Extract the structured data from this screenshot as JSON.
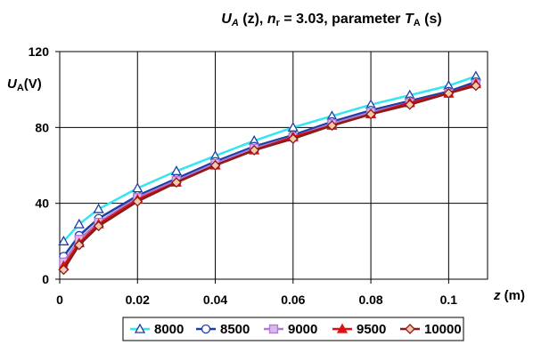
{
  "chart_data": {
    "type": "line",
    "title": {
      "prefix": "U",
      "prefix_sub": "A",
      "middle": " (z), ",
      "n": "n",
      "n_sub": "r",
      "n_value": " = 3.03, parameter ",
      "t": "T",
      "t_sub": "A",
      "suffix": " (s)"
    },
    "ylabel": {
      "symbol": "U",
      "sub": "A",
      "unit": "(V)"
    },
    "xlabel": {
      "symbol": "z",
      "unit": " (m)"
    },
    "xlim": [
      0,
      0.11
    ],
    "ylim": [
      0,
      120
    ],
    "xticks": [
      0,
      0.02,
      0.04,
      0.06,
      0.08,
      0.1
    ],
    "xtick_labels": [
      "0",
      "0.02",
      "0.04",
      "0.06",
      "0.08",
      "0.1"
    ],
    "yticks": [
      0,
      40,
      80,
      120
    ],
    "ytick_labels": [
      "0",
      "40",
      "80",
      "120"
    ],
    "grid": true,
    "legend_position": "bottom",
    "x": [
      0.001,
      0.005,
      0.01,
      0.02,
      0.03,
      0.04,
      0.05,
      0.06,
      0.07,
      0.08,
      0.09,
      0.1,
      0.107
    ],
    "series": [
      {
        "name": "8000",
        "color": "#33e6f0",
        "marker": "triangle",
        "values": [
          20,
          29,
          37,
          48,
          57,
          65,
          73,
          80,
          86,
          92,
          97,
          102,
          107
        ]
      },
      {
        "name": "8500",
        "color": "#1c3ea8",
        "marker": "circle",
        "values": [
          12,
          23,
          32,
          44,
          53,
          62,
          70,
          76,
          83,
          89,
          94,
          99,
          104
        ]
      },
      {
        "name": "9000",
        "color": "#b07ad1",
        "marker": "square",
        "values": [
          9,
          21,
          30,
          43,
          52,
          61,
          69,
          75,
          82,
          88,
          93,
          98,
          103
        ]
      },
      {
        "name": "9500",
        "color": "#e01010",
        "marker": "triangle-filled",
        "values": [
          7,
          19,
          29,
          42,
          51,
          60,
          68,
          75,
          81,
          87,
          93,
          98,
          103
        ]
      },
      {
        "name": "10000",
        "color": "#8b1a1a",
        "marker": "diamond",
        "values": [
          5,
          18,
          28,
          41,
          51,
          60,
          68,
          74,
          81,
          87,
          92,
          98,
          102
        ]
      }
    ]
  }
}
